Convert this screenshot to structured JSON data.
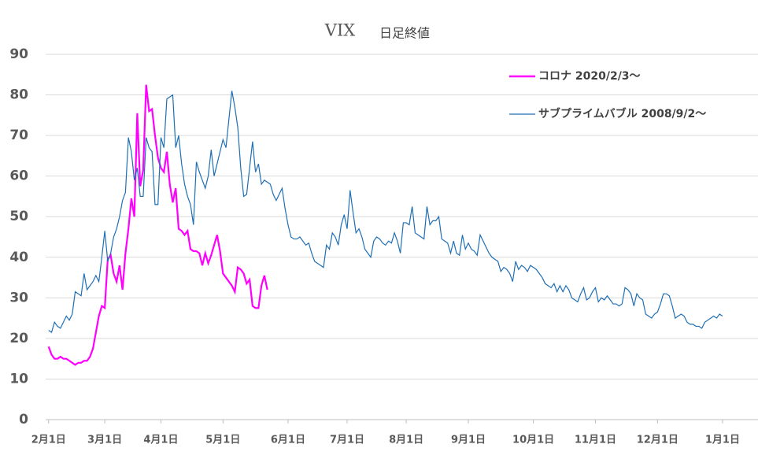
{
  "chart_data": {
    "type": "line",
    "title": "VIX",
    "subtitle": "日足終値",
    "xticks": [
      {
        "value": 0,
        "label": "2月1日"
      },
      {
        "value": 19,
        "label": "3月1日"
      },
      {
        "value": 38,
        "label": "4月1日"
      },
      {
        "value": 59,
        "label": "5月1日"
      },
      {
        "value": 81,
        "label": "6月1日"
      },
      {
        "value": 101,
        "label": "7月1日"
      },
      {
        "value": 121,
        "label": "8月1日"
      },
      {
        "value": 142,
        "label": "9月1日"
      },
      {
        "value": 164,
        "label": "10月1日"
      },
      {
        "value": 185,
        "label": "11月1日"
      },
      {
        "value": 206,
        "label": "12月1日"
      },
      {
        "value": 228,
        "label": "1月1日"
      }
    ],
    "xlim": [
      -1,
      240
    ],
    "ylim": [
      0,
      90
    ],
    "yticks": [
      0,
      10,
      20,
      30,
      40,
      50,
      60,
      70,
      80,
      90
    ],
    "grid": true,
    "legend": "upper right",
    "series": [
      {
        "name": "コロナ 2020/2/3～",
        "color": "#ff00ff",
        "values": [
          18,
          16,
          15,
          15,
          15.5,
          15,
          15,
          14.5,
          14,
          13.5,
          14,
          14,
          14.5,
          14.5,
          15.5,
          17.5,
          21.5,
          25.5,
          28,
          27.5,
          39.5,
          40.5,
          36,
          34,
          38,
          32,
          41,
          47,
          54.5,
          50,
          75.5,
          57.5,
          61.5,
          82.5,
          76,
          76.5,
          70,
          64.5,
          62,
          61,
          66,
          58,
          53.5,
          57,
          47,
          46.5,
          45.5,
          46.5,
          42,
          41.5,
          41.5,
          41,
          38,
          41,
          38.5,
          40.5,
          43,
          45.5,
          41.5,
          36,
          35,
          34,
          33,
          31.5,
          37.5,
          37,
          36,
          33.5,
          34.5,
          28,
          27.5,
          27.5,
          33,
          35.5,
          32
        ]
      },
      {
        "name": "サブプライムバブル 2008/9/2～",
        "color": "#1f6fb5",
        "values": [
          22,
          21.5,
          24,
          23,
          22.5,
          24,
          25.5,
          24.5,
          26,
          31.5,
          31,
          30.5,
          36,
          32,
          33,
          34,
          35.5,
          34,
          40,
          46.5,
          39,
          41,
          45,
          47,
          50,
          54,
          56,
          69.5,
          66,
          59,
          62,
          55,
          55,
          69.5,
          67,
          66,
          53,
          53,
          69.5,
          67,
          79,
          79.5,
          80,
          67,
          70,
          63,
          58,
          55,
          53,
          48,
          63.5,
          61,
          59,
          57,
          60,
          66.5,
          60,
          63,
          66,
          69,
          67,
          74,
          81,
          77,
          72,
          62,
          55,
          55.5,
          62,
          68.5,
          61,
          63,
          58,
          59,
          58.5,
          58,
          55.5,
          54,
          55.5,
          57,
          52,
          48,
          45,
          44.5,
          44.5,
          45,
          44,
          43,
          43.5,
          41,
          39,
          38.5,
          38,
          37.5,
          43,
          42,
          46,
          45,
          43,
          48,
          50.5,
          47,
          56.5,
          51,
          46,
          47,
          45,
          42,
          41,
          40,
          44,
          45,
          44.5,
          43.5,
          43,
          44,
          43.5,
          46,
          44,
          41,
          48.5,
          48.5,
          48,
          52.5,
          46,
          45.5,
          45,
          44.5,
          52.5,
          48,
          49,
          49,
          50,
          44.5,
          44,
          43.5,
          41,
          44,
          41,
          40.5,
          45.5,
          42,
          43.5,
          42,
          41.5,
          40.5,
          45.5,
          44,
          42.5,
          41,
          40,
          39.5,
          39,
          36.5,
          37.5,
          37,
          36,
          34,
          39,
          37,
          38,
          37.5,
          36.5,
          38,
          37.5,
          37,
          36,
          35,
          33.5,
          33,
          32.5,
          33.5,
          31.5,
          33,
          31.5,
          33,
          32,
          30,
          29.5,
          29,
          31,
          32.5,
          29.5,
          30,
          31.5,
          32.5,
          29,
          30,
          29.5,
          30.5,
          29.5,
          28.5,
          28.5,
          28,
          28.5,
          32.5,
          32,
          31,
          28,
          31,
          30,
          29.5,
          26,
          25.5,
          25,
          26,
          26.5,
          28.5,
          31,
          31,
          30.5,
          28,
          25,
          25.5,
          26,
          25.5,
          24,
          23.5,
          23.5,
          23,
          23,
          22.5,
          24,
          24.5,
          25,
          25.5,
          25,
          26,
          25.5
        ]
      }
    ]
  }
}
